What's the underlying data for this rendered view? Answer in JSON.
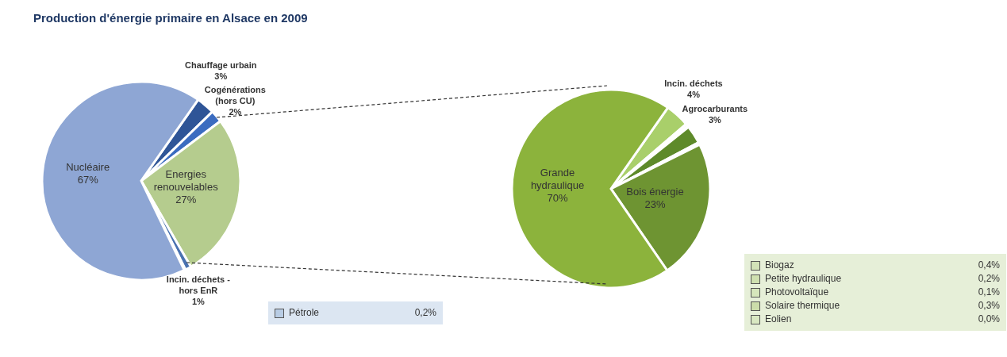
{
  "chart_data": [
    {
      "type": "pie",
      "title": "Production d'énergie primaire en Alsace en 2009",
      "categories": [
        "Chauffage urbain",
        "Cogénérations (hors CU)",
        "Energies renouvelables",
        "Incin. déchets - hors EnR",
        "Pétrole",
        "Nucléaire"
      ],
      "values": [
        3,
        2,
        27,
        1,
        0.2,
        67
      ],
      "value_labels": [
        "3%",
        "2%",
        "27%",
        "1%",
        "0,2%",
        "67%"
      ],
      "colors": [
        "#2f5597",
        "#3b6cc0",
        "#b5cc8e",
        "#4a72b0",
        "#b8cce4",
        "#8ea6d4"
      ],
      "legend": "bottom"
    },
    {
      "type": "pie",
      "categories": [
        "Incin. déchets",
        "Biogaz",
        "Petite hydraulique",
        "Agrocarburants",
        "Photovoltaïque",
        "Solaire thermique",
        "Eolien",
        "Bois énergie",
        "Grande hydraulique"
      ],
      "values": [
        4,
        0.4,
        0.2,
        3,
        0.1,
        0.3,
        0.0,
        23,
        70
      ],
      "value_labels": [
        "4%",
        "0,4%",
        "0,2%",
        "3%",
        "0,1%",
        "0,3%",
        "0,0%",
        "23%",
        "70%"
      ],
      "colors": [
        "#a9cf6a",
        "#d2e2b8",
        "#cfe0b0",
        "#5e8a2a",
        "#d6e6bc",
        "#cbdcaa",
        "#d9e8c2",
        "#6e9432",
        "#8cb33c"
      ],
      "legend": "bottom right"
    }
  ]
}
